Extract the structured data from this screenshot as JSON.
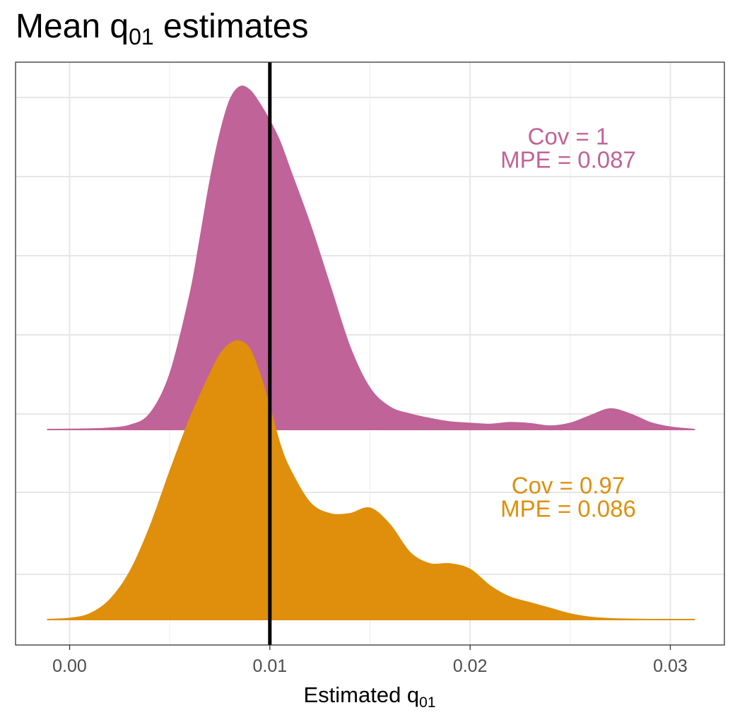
{
  "chart_data": {
    "type": "area",
    "title": {
      "main": "Mean q",
      "sub": "01",
      "rest": " estimates"
    },
    "xlabel": {
      "main": "Estimated q",
      "sub": "01"
    },
    "ylabel": "",
    "xlim": [
      -0.0027,
      0.0327
    ],
    "x_ticks": [
      {
        "value": 0.0,
        "label": "0.00"
      },
      {
        "value": 0.01,
        "label": "0.01"
      },
      {
        "value": 0.02,
        "label": "0.02"
      },
      {
        "value": 0.03,
        "label": "0.03"
      }
    ],
    "x_minor_ticks": [
      0.005,
      0.015,
      0.025
    ],
    "reference_line": {
      "x": 0.01,
      "color": "#000000"
    },
    "grid": true,
    "legend": "none",
    "series": [
      {
        "color": "#c06398",
        "baseline_row": 2,
        "annotation": [
          "Cov = 1",
          "MPE = 0.087"
        ],
        "annotation_x": 0.0249,
        "x": [
          -0.0011,
          0.0,
          0.001,
          0.002,
          0.003,
          0.004,
          0.005,
          0.006,
          0.0065,
          0.007,
          0.0075,
          0.008,
          0.0085,
          0.009,
          0.0095,
          0.01,
          0.0105,
          0.011,
          0.012,
          0.013,
          0.014,
          0.015,
          0.016,
          0.017,
          0.018,
          0.019,
          0.02,
          0.021,
          0.022,
          0.023,
          0.024,
          0.025,
          0.026,
          0.027,
          0.028,
          0.029,
          0.03,
          0.0312
        ],
        "y": [
          0.0,
          0.0004,
          0.0015,
          0.004,
          0.012,
          0.045,
          0.16,
          0.39,
          0.55,
          0.72,
          0.86,
          0.96,
          1.0,
          0.99,
          0.95,
          0.9,
          0.84,
          0.76,
          0.6,
          0.42,
          0.24,
          0.12,
          0.065,
          0.045,
          0.032,
          0.022,
          0.018,
          0.015,
          0.02,
          0.017,
          0.01,
          0.018,
          0.04,
          0.06,
          0.045,
          0.02,
          0.007,
          0.0
        ]
      },
      {
        "color": "#df8f0b",
        "baseline_row": 1,
        "annotation": [
          "Cov = 0.97",
          "MPE = 0.086"
        ],
        "annotation_x": 0.0249,
        "x": [
          -0.0011,
          0.0,
          0.001,
          0.002,
          0.003,
          0.004,
          0.005,
          0.006,
          0.007,
          0.0075,
          0.008,
          0.0085,
          0.009,
          0.0095,
          0.01,
          0.0105,
          0.011,
          0.012,
          0.013,
          0.014,
          0.015,
          0.016,
          0.017,
          0.018,
          0.019,
          0.02,
          0.021,
          0.022,
          0.023,
          0.024,
          0.025,
          0.026,
          0.027,
          0.028,
          0.029,
          0.03,
          0.0312
        ],
        "y": [
          0.0,
          0.004,
          0.02,
          0.07,
          0.17,
          0.33,
          0.53,
          0.72,
          0.88,
          0.95,
          0.99,
          1.0,
          0.97,
          0.88,
          0.76,
          0.63,
          0.54,
          0.42,
          0.38,
          0.38,
          0.4,
          0.34,
          0.24,
          0.2,
          0.2,
          0.18,
          0.12,
          0.08,
          0.06,
          0.04,
          0.02,
          0.008,
          0.003,
          0.001,
          0.0,
          0.0,
          0.0
        ]
      }
    ]
  }
}
